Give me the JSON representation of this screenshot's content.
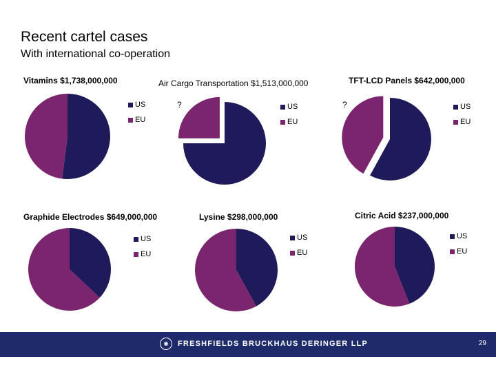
{
  "slide": {
    "title": "Recent cartel cases",
    "subtitle": "With international co-operation",
    "page_number": "29",
    "firm": "FRESHFIELDS BRUCKHAUS DERINGER LLP"
  },
  "colors": {
    "us": "#1f1a5a",
    "eu": "#7a256e",
    "footer": "#1f2a6b"
  },
  "chart_data": [
    {
      "type": "pie",
      "title": "Vitamins $1,738,000,000",
      "labels": [
        "US",
        "EU"
      ],
      "values": [
        52,
        48
      ],
      "legend_position": "right"
    },
    {
      "type": "pie",
      "title": "Air Cargo Transportation $1,513,000,000",
      "labels": [
        "US",
        "EU"
      ],
      "values": [
        75,
        25
      ],
      "exploded": "EU",
      "annotation": "?",
      "legend_position": "right"
    },
    {
      "type": "pie",
      "title": "TFT-LCD Panels $642,000,000",
      "labels": [
        "US",
        "EU"
      ],
      "values": [
        58,
        42
      ],
      "exploded": "EU",
      "annotation": "?",
      "legend_position": "right"
    },
    {
      "type": "pie",
      "title": "Graphide Electrodes $649,000,000",
      "labels": [
        "US",
        "EU"
      ],
      "values": [
        37,
        63
      ],
      "legend_position": "right"
    },
    {
      "type": "pie",
      "title": "Lysine $298,000,000",
      "labels": [
        "US",
        "EU"
      ],
      "values": [
        42,
        58
      ],
      "legend_position": "right"
    },
    {
      "type": "pie",
      "title": "Citric Acid $237,000,000",
      "labels": [
        "US",
        "EU"
      ],
      "values": [
        44,
        56
      ],
      "legend_position": "right"
    }
  ]
}
